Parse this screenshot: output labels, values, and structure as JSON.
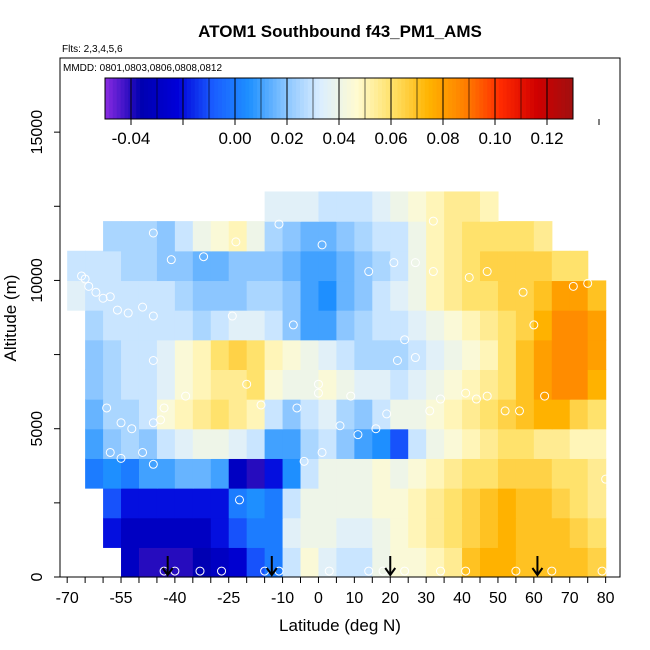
{
  "chart_data": {
    "type": "heatmap",
    "title": "ATOM1 Southbound f43_PM1_AMS",
    "flights_note": "Flts: 2,3,4,5,6",
    "dates_note": "MMDD: 0801,0803,0806,0808,0812",
    "xlabel": "Latitude (deg N)",
    "ylabel": "Altitude (m)",
    "xlim": [
      -72,
      84
    ],
    "ylim": [
      0,
      17500
    ],
    "x_ticks": [
      -70,
      -55,
      -40,
      -25,
      -10,
      0,
      10,
      20,
      30,
      40,
      50,
      60,
      70,
      80
    ],
    "x_tick_labels": [
      "-70",
      "-55",
      "-40",
      "-25",
      "-10",
      "0",
      "10",
      "20",
      "30",
      "40",
      "50",
      "60",
      "70",
      "80"
    ],
    "y_ticks": [
      0,
      5000,
      10000,
      15000
    ],
    "y_tick_labels": [
      "0",
      "5000",
      "10000",
      "15000"
    ],
    "colorbar": {
      "min": -0.05,
      "max": 0.13,
      "ticks": [
        -0.04,
        0.0,
        0.02,
        0.04,
        0.06,
        0.08,
        0.1,
        0.12
      ],
      "tick_labels": [
        "-0.04",
        "0.00",
        "0.02",
        "0.04",
        "0.06",
        "0.08",
        "0.10",
        "0.12"
      ],
      "colors": [
        "#8a2be2",
        "#0000b0",
        "#0000d8",
        "#1a5cff",
        "#1e90ff",
        "#87c4ff",
        "#dceeff",
        "#fffbd0",
        "#ffe066",
        "#ffb300",
        "#ff7f00",
        "#ff2a00",
        "#d00000",
        "#a01010"
      ]
    },
    "lat_bins": [
      -70,
      -65,
      -60,
      -55,
      -50,
      -45,
      -40,
      -35,
      -30,
      -25,
      -20,
      -15,
      -10,
      -5,
      0,
      5,
      10,
      15,
      20,
      25,
      30,
      35,
      40,
      45,
      50,
      55,
      60,
      65,
      70,
      75,
      80
    ],
    "alt_bins": [
      0,
      1000,
      2000,
      3000,
      4000,
      5000,
      6000,
      7000,
      8000,
      9000,
      10000,
      11000,
      12000,
      13000
    ],
    "values": [
      [
        null,
        null,
        null,
        -0.03,
        -0.04,
        -0.04,
        -0.04,
        -0.035,
        -0.03,
        -0.025,
        -0.01,
        0.0,
        0.03,
        0.045,
        0.035,
        0.03,
        0.03,
        0.04,
        0.045,
        0.045,
        0.05,
        0.055,
        0.07,
        0.075,
        0.075,
        0.07,
        0.07,
        0.07,
        0.07,
        0.065
      ],
      [
        null,
        null,
        -0.02,
        -0.03,
        -0.03,
        -0.03,
        -0.03,
        -0.03,
        -0.02,
        -0.01,
        0.0,
        0.0,
        0.035,
        0.04,
        0.04,
        0.035,
        0.035,
        0.04,
        0.045,
        0.05,
        0.055,
        0.06,
        0.065,
        0.07,
        0.075,
        0.07,
        0.07,
        0.07,
        0.065,
        0.06
      ],
      [
        null,
        null,
        -0.01,
        -0.02,
        -0.02,
        -0.02,
        -0.02,
        -0.02,
        -0.02,
        0.0,
        0.005,
        0.0,
        0.03,
        0.04,
        0.04,
        0.04,
        0.04,
        0.045,
        0.045,
        0.05,
        0.055,
        0.06,
        0.065,
        0.07,
        0.075,
        0.07,
        0.07,
        0.065,
        0.06,
        0.055
      ],
      [
        null,
        0.0,
        0.005,
        0.0,
        0.01,
        0.01,
        0.015,
        0.015,
        0.01,
        -0.03,
        -0.04,
        -0.02,
        0.005,
        0.03,
        0.04,
        0.04,
        0.04,
        0.045,
        0.04,
        0.045,
        0.05,
        0.055,
        0.06,
        0.06,
        0.065,
        0.065,
        0.065,
        0.06,
        0.06,
        0.055
      ],
      [
        null,
        0.01,
        0.02,
        0.025,
        0.02,
        0.03,
        0.035,
        0.04,
        0.04,
        0.035,
        0.03,
        0.01,
        0.01,
        0.025,
        0.03,
        0.02,
        0.01,
        0.005,
        -0.01,
        0.03,
        0.04,
        0.045,
        0.05,
        0.055,
        0.06,
        0.06,
        0.055,
        0.055,
        0.05,
        0.05
      ],
      [
        null,
        0.015,
        0.025,
        0.025,
        0.03,
        0.045,
        0.05,
        0.055,
        0.06,
        0.055,
        0.05,
        0.03,
        0.02,
        0.03,
        0.035,
        0.025,
        0.02,
        0.03,
        0.04,
        0.04,
        0.045,
        0.05,
        0.055,
        0.06,
        0.065,
        0.07,
        0.075,
        0.075,
        0.065,
        0.06
      ],
      [
        null,
        0.02,
        0.025,
        0.03,
        0.03,
        0.035,
        0.045,
        0.05,
        0.055,
        0.055,
        0.06,
        0.045,
        0.04,
        0.04,
        0.045,
        0.04,
        0.035,
        0.035,
        0.03,
        0.035,
        0.04,
        0.045,
        0.05,
        0.055,
        0.06,
        0.07,
        0.08,
        0.085,
        0.085,
        0.075
      ],
      [
        null,
        0.02,
        0.025,
        0.03,
        0.03,
        0.035,
        0.045,
        0.05,
        0.06,
        0.065,
        0.06,
        0.05,
        0.045,
        0.04,
        0.035,
        0.03,
        0.025,
        0.025,
        0.025,
        0.03,
        0.035,
        0.04,
        0.045,
        0.05,
        0.06,
        0.07,
        0.08,
        0.085,
        0.085,
        0.08
      ],
      [
        null,
        0.025,
        0.03,
        0.03,
        0.03,
        0.03,
        0.03,
        0.025,
        0.03,
        0.035,
        0.035,
        0.03,
        0.02,
        0.01,
        0.01,
        0.02,
        0.025,
        0.03,
        0.03,
        0.035,
        0.04,
        0.045,
        0.05,
        0.055,
        0.06,
        0.065,
        0.075,
        0.085,
        0.085,
        0.08
      ],
      [
        0.035,
        0.03,
        0.03,
        0.03,
        0.03,
        0.03,
        0.025,
        0.02,
        0.02,
        0.02,
        0.025,
        0.025,
        0.02,
        0.01,
        0.005,
        0.015,
        0.02,
        0.03,
        0.035,
        0.04,
        0.05,
        0.055,
        0.06,
        0.06,
        0.065,
        0.065,
        0.07,
        0.08,
        0.08,
        0.07
      ],
      [
        0.03,
        0.03,
        0.03,
        0.025,
        0.025,
        0.02,
        0.02,
        0.015,
        0.015,
        0.02,
        0.02,
        0.02,
        0.015,
        0.01,
        0.01,
        0.015,
        0.02,
        0.025,
        0.03,
        0.04,
        0.05,
        0.055,
        0.06,
        0.065,
        0.065,
        0.065,
        0.065,
        0.06,
        0.06,
        null
      ],
      [
        null,
        null,
        0.025,
        0.025,
        0.025,
        0.02,
        0.03,
        0.04,
        0.045,
        0.05,
        0.04,
        0.025,
        0.02,
        0.015,
        0.015,
        0.02,
        0.025,
        0.03,
        0.03,
        0.04,
        0.05,
        0.055,
        0.06,
        0.06,
        0.06,
        0.06,
        0.055,
        null,
        null,
        null
      ],
      [
        null,
        null,
        null,
        null,
        null,
        null,
        null,
        null,
        null,
        null,
        null,
        0.035,
        0.035,
        0.035,
        0.03,
        0.03,
        0.03,
        0.035,
        0.04,
        0.045,
        0.05,
        0.055,
        0.055,
        0.05,
        null,
        null,
        null,
        null,
        null,
        null
      ],
      [
        null,
        null,
        null,
        null,
        null,
        null,
        null,
        null,
        null,
        null,
        null,
        null,
        null,
        null,
        null,
        0.035,
        0.035,
        0.035,
        0.035,
        0.035,
        0.03,
        0.025,
        null,
        null,
        null,
        null,
        null,
        null,
        null,
        null
      ]
    ],
    "sample_points": [
      {
        "lat": -66,
        "alt": 10150
      },
      {
        "lat": -65,
        "alt": 10050
      },
      {
        "lat": -64,
        "alt": 9800
      },
      {
        "lat": -62,
        "alt": 9600
      },
      {
        "lat": -60,
        "alt": 9400
      },
      {
        "lat": -58,
        "alt": 9450
      },
      {
        "lat": -56,
        "alt": 9000
      },
      {
        "lat": -53,
        "alt": 8900
      },
      {
        "lat": -49,
        "alt": 9100
      },
      {
        "lat": -46,
        "alt": 8800
      },
      {
        "lat": -41,
        "alt": 10700
      },
      {
        "lat": -32,
        "alt": 10800
      },
      {
        "lat": -23,
        "alt": 11300
      },
      {
        "lat": -11,
        "alt": 11900
      },
      {
        "lat": 1,
        "alt": 11200
      },
      {
        "lat": -46,
        "alt": 11600
      },
      {
        "lat": -67,
        "alt": 5800
      },
      {
        "lat": -67,
        "alt": 5200
      },
      {
        "lat": -59,
        "alt": 5700
      },
      {
        "lat": -55,
        "alt": 5200
      },
      {
        "lat": -52,
        "alt": 5000
      },
      {
        "lat": -49,
        "alt": 4200
      },
      {
        "lat": -46,
        "alt": 5200
      },
      {
        "lat": -46,
        "alt": 3800
      },
      {
        "lat": -44,
        "alt": 5300
      },
      {
        "lat": -43,
        "alt": 5700
      },
      {
        "lat": -46,
        "alt": 7300
      },
      {
        "lat": -37,
        "alt": 6100
      },
      {
        "lat": -24,
        "alt": 8800
      },
      {
        "lat": -7,
        "alt": 8500
      },
      {
        "lat": -22,
        "alt": 2600
      },
      {
        "lat": -20,
        "alt": 6500
      },
      {
        "lat": -16,
        "alt": 5800
      },
      {
        "lat": -6,
        "alt": 5700
      },
      {
        "lat": -4,
        "alt": 3900
      },
      {
        "lat": 0,
        "alt": 6500
      },
      {
        "lat": 0,
        "alt": 6200
      },
      {
        "lat": 1,
        "alt": 4200
      },
      {
        "lat": 6,
        "alt": 5100
      },
      {
        "lat": 9,
        "alt": 6100
      },
      {
        "lat": 11,
        "alt": 4800
      },
      {
        "lat": 16,
        "alt": 5000
      },
      {
        "lat": 19,
        "alt": 5500
      },
      {
        "lat": 22,
        "alt": 7300
      },
      {
        "lat": 24,
        "alt": 8000
      },
      {
        "lat": 27,
        "alt": 7400
      },
      {
        "lat": 31,
        "alt": 5600
      },
      {
        "lat": 34,
        "alt": 6000
      },
      {
        "lat": 41,
        "alt": 6200
      },
      {
        "lat": 44,
        "alt": 6000
      },
      {
        "lat": 47,
        "alt": 6100
      },
      {
        "lat": 52,
        "alt": 5600
      },
      {
        "lat": 56,
        "alt": 5600
      },
      {
        "lat": 63,
        "alt": 6100
      },
      {
        "lat": 60,
        "alt": 8500
      },
      {
        "lat": 57,
        "alt": 9600
      },
      {
        "lat": 47,
        "alt": 10300
      },
      {
        "lat": 42,
        "alt": 10100
      },
      {
        "lat": 32,
        "alt": 10300
      },
      {
        "lat": 27,
        "alt": 10600
      },
      {
        "lat": 21,
        "alt": 10600
      },
      {
        "lat": 14,
        "alt": 10300
      },
      {
        "lat": 32,
        "alt": 12000
      },
      {
        "lat": 71,
        "alt": 9800
      },
      {
        "lat": 75,
        "alt": 9900
      },
      {
        "lat": 77,
        "alt": 11200
      },
      {
        "lat": 80,
        "alt": 3300
      },
      {
        "lat": 79,
        "alt": 200
      },
      {
        "lat": -58,
        "alt": 4200
      },
      {
        "lat": -55,
        "alt": 4000
      },
      {
        "lat": -43,
        "alt": 200
      },
      {
        "lat": -40,
        "alt": 200
      },
      {
        "lat": -33,
        "alt": 200
      },
      {
        "lat": -27,
        "alt": 200
      },
      {
        "lat": -15,
        "alt": 200
      },
      {
        "lat": -11,
        "alt": 200
      },
      {
        "lat": 3,
        "alt": 200
      },
      {
        "lat": 14,
        "alt": 200
      },
      {
        "lat": 18,
        "alt": 200
      },
      {
        "lat": 24,
        "alt": 200
      },
      {
        "lat": 34,
        "alt": 200
      },
      {
        "lat": 41,
        "alt": 200
      },
      {
        "lat": 55,
        "alt": 200
      },
      {
        "lat": 65,
        "alt": 200
      }
    ],
    "arrows_lat": [
      -42,
      -13,
      20,
      61
    ]
  }
}
